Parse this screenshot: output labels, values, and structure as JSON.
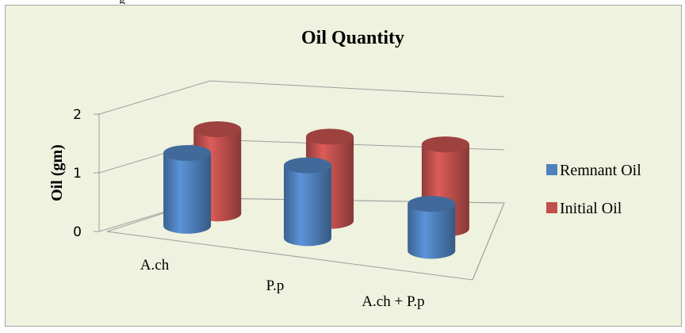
{
  "top_fragment": "g",
  "chart_data": {
    "type": "bar",
    "title": "Oil Quantity",
    "xlabel": "",
    "ylabel": "Oil (gm)",
    "ylim": [
      0,
      2
    ],
    "yticks": [
      0,
      1,
      2
    ],
    "categories": [
      "A.ch",
      "P.p",
      "A.ch + P.p"
    ],
    "series": [
      {
        "name": "Remnant Oil",
        "color": "#4f81bd",
        "values": [
          1.55,
          1.55,
          1.0
        ]
      },
      {
        "name": "Initial Oil",
        "color": "#c0504d",
        "values": [
          1.75,
          1.75,
          1.75
        ]
      }
    ],
    "legend_position": "right",
    "grid": true,
    "shape": "cylinder-3d"
  }
}
